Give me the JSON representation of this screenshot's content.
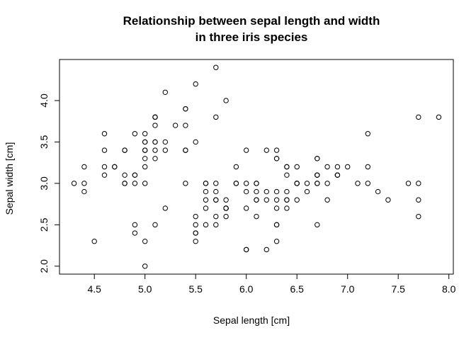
{
  "chart_data": {
    "type": "scatter",
    "title_lines": [
      "Relationship between sepal length and width",
      "in three iris species"
    ],
    "xlabel": "Sepal length [cm]",
    "ylabel": "Sepal width [cm]",
    "xlim": [
      4.3,
      7.9
    ],
    "ylim": [
      2.0,
      4.4
    ],
    "xticks": [
      "4.5",
      "5.0",
      "5.5",
      "6.0",
      "6.5",
      "7.0",
      "7.5",
      "8.0"
    ],
    "yticks": [
      "2.0",
      "2.5",
      "3.0",
      "3.5",
      "4.0"
    ],
    "grid": false,
    "legend": "none",
    "point_color": "#000000",
    "points": [
      [
        5.1,
        3.5
      ],
      [
        4.9,
        3.0
      ],
      [
        4.7,
        3.2
      ],
      [
        4.6,
        3.1
      ],
      [
        5.0,
        3.6
      ],
      [
        5.4,
        3.9
      ],
      [
        4.6,
        3.4
      ],
      [
        5.0,
        3.4
      ],
      [
        4.4,
        2.9
      ],
      [
        4.9,
        3.1
      ],
      [
        5.4,
        3.7
      ],
      [
        4.8,
        3.4
      ],
      [
        4.8,
        3.0
      ],
      [
        4.3,
        3.0
      ],
      [
        5.8,
        4.0
      ],
      [
        5.7,
        4.4
      ],
      [
        5.4,
        3.9
      ],
      [
        5.1,
        3.5
      ],
      [
        5.7,
        3.8
      ],
      [
        5.1,
        3.8
      ],
      [
        5.4,
        3.4
      ],
      [
        5.1,
        3.7
      ],
      [
        4.6,
        3.6
      ],
      [
        5.1,
        3.3
      ],
      [
        4.8,
        3.4
      ],
      [
        5.0,
        3.0
      ],
      [
        5.0,
        3.4
      ],
      [
        5.2,
        3.5
      ],
      [
        5.2,
        3.4
      ],
      [
        4.7,
        3.2
      ],
      [
        4.8,
        3.1
      ],
      [
        5.4,
        3.4
      ],
      [
        5.2,
        4.1
      ],
      [
        5.5,
        4.2
      ],
      [
        4.9,
        3.1
      ],
      [
        5.0,
        3.2
      ],
      [
        5.5,
        3.5
      ],
      [
        4.9,
        3.6
      ],
      [
        4.4,
        3.0
      ],
      [
        5.1,
        3.4
      ],
      [
        5.0,
        3.5
      ],
      [
        4.5,
        2.3
      ],
      [
        4.4,
        3.2
      ],
      [
        5.0,
        3.5
      ],
      [
        5.1,
        3.8
      ],
      [
        4.8,
        3.0
      ],
      [
        5.1,
        3.8
      ],
      [
        4.6,
        3.2
      ],
      [
        5.3,
        3.7
      ],
      [
        5.0,
        3.3
      ],
      [
        7.0,
        3.2
      ],
      [
        6.4,
        3.2
      ],
      [
        6.9,
        3.1
      ],
      [
        5.5,
        2.3
      ],
      [
        6.5,
        2.8
      ],
      [
        5.7,
        2.8
      ],
      [
        6.3,
        3.3
      ],
      [
        4.9,
        2.4
      ],
      [
        6.6,
        2.9
      ],
      [
        5.2,
        2.7
      ],
      [
        5.0,
        2.0
      ],
      [
        5.9,
        3.0
      ],
      [
        6.0,
        2.2
      ],
      [
        6.1,
        2.9
      ],
      [
        5.6,
        2.9
      ],
      [
        6.7,
        3.1
      ],
      [
        5.6,
        3.0
      ],
      [
        5.8,
        2.7
      ],
      [
        6.2,
        2.2
      ],
      [
        5.6,
        2.5
      ],
      [
        5.9,
        3.2
      ],
      [
        6.1,
        2.8
      ],
      [
        6.3,
        2.5
      ],
      [
        6.1,
        2.8
      ],
      [
        6.4,
        2.9
      ],
      [
        6.6,
        3.0
      ],
      [
        6.8,
        2.8
      ],
      [
        6.7,
        3.0
      ],
      [
        6.0,
        2.9
      ],
      [
        5.7,
        2.6
      ],
      [
        5.5,
        2.4
      ],
      [
        5.5,
        2.4
      ],
      [
        5.8,
        2.7
      ],
      [
        6.0,
        2.7
      ],
      [
        5.4,
        3.0
      ],
      [
        6.0,
        3.4
      ],
      [
        6.7,
        3.1
      ],
      [
        6.3,
        2.3
      ],
      [
        5.6,
        3.0
      ],
      [
        5.5,
        2.5
      ],
      [
        5.5,
        2.6
      ],
      [
        6.1,
        3.0
      ],
      [
        5.8,
        2.6
      ],
      [
        5.0,
        2.3
      ],
      [
        5.6,
        2.7
      ],
      [
        5.7,
        3.0
      ],
      [
        5.7,
        2.9
      ],
      [
        6.2,
        2.9
      ],
      [
        5.1,
        2.5
      ],
      [
        5.7,
        2.8
      ],
      [
        6.3,
        3.3
      ],
      [
        5.8,
        2.7
      ],
      [
        7.1,
        3.0
      ],
      [
        6.3,
        2.9
      ],
      [
        6.5,
        3.0
      ],
      [
        7.6,
        3.0
      ],
      [
        4.9,
        2.5
      ],
      [
        7.3,
        2.9
      ],
      [
        6.7,
        2.5
      ],
      [
        7.2,
        3.6
      ],
      [
        6.5,
        3.2
      ],
      [
        6.4,
        2.7
      ],
      [
        6.8,
        3.0
      ],
      [
        5.7,
        2.5
      ],
      [
        5.8,
        2.8
      ],
      [
        6.4,
        3.2
      ],
      [
        6.5,
        3.0
      ],
      [
        7.7,
        3.8
      ],
      [
        7.7,
        2.6
      ],
      [
        6.0,
        2.2
      ],
      [
        6.9,
        3.2
      ],
      [
        5.6,
        2.8
      ],
      [
        7.7,
        2.8
      ],
      [
        6.3,
        2.7
      ],
      [
        6.7,
        3.3
      ],
      [
        7.2,
        3.2
      ],
      [
        6.2,
        2.8
      ],
      [
        6.1,
        3.0
      ],
      [
        6.4,
        2.8
      ],
      [
        7.2,
        3.0
      ],
      [
        7.4,
        2.8
      ],
      [
        7.9,
        3.8
      ],
      [
        6.4,
        2.8
      ],
      [
        6.3,
        2.8
      ],
      [
        6.1,
        2.6
      ],
      [
        7.7,
        3.0
      ],
      [
        6.3,
        3.4
      ],
      [
        6.4,
        3.1
      ],
      [
        6.0,
        3.0
      ],
      [
        6.9,
        3.1
      ],
      [
        6.7,
        3.1
      ],
      [
        6.9,
        3.1
      ],
      [
        5.8,
        2.7
      ],
      [
        6.8,
        3.2
      ],
      [
        6.7,
        3.3
      ],
      [
        6.7,
        3.0
      ],
      [
        6.3,
        2.5
      ],
      [
        6.5,
        3.0
      ],
      [
        6.2,
        3.4
      ],
      [
        5.9,
        3.0
      ]
    ]
  }
}
